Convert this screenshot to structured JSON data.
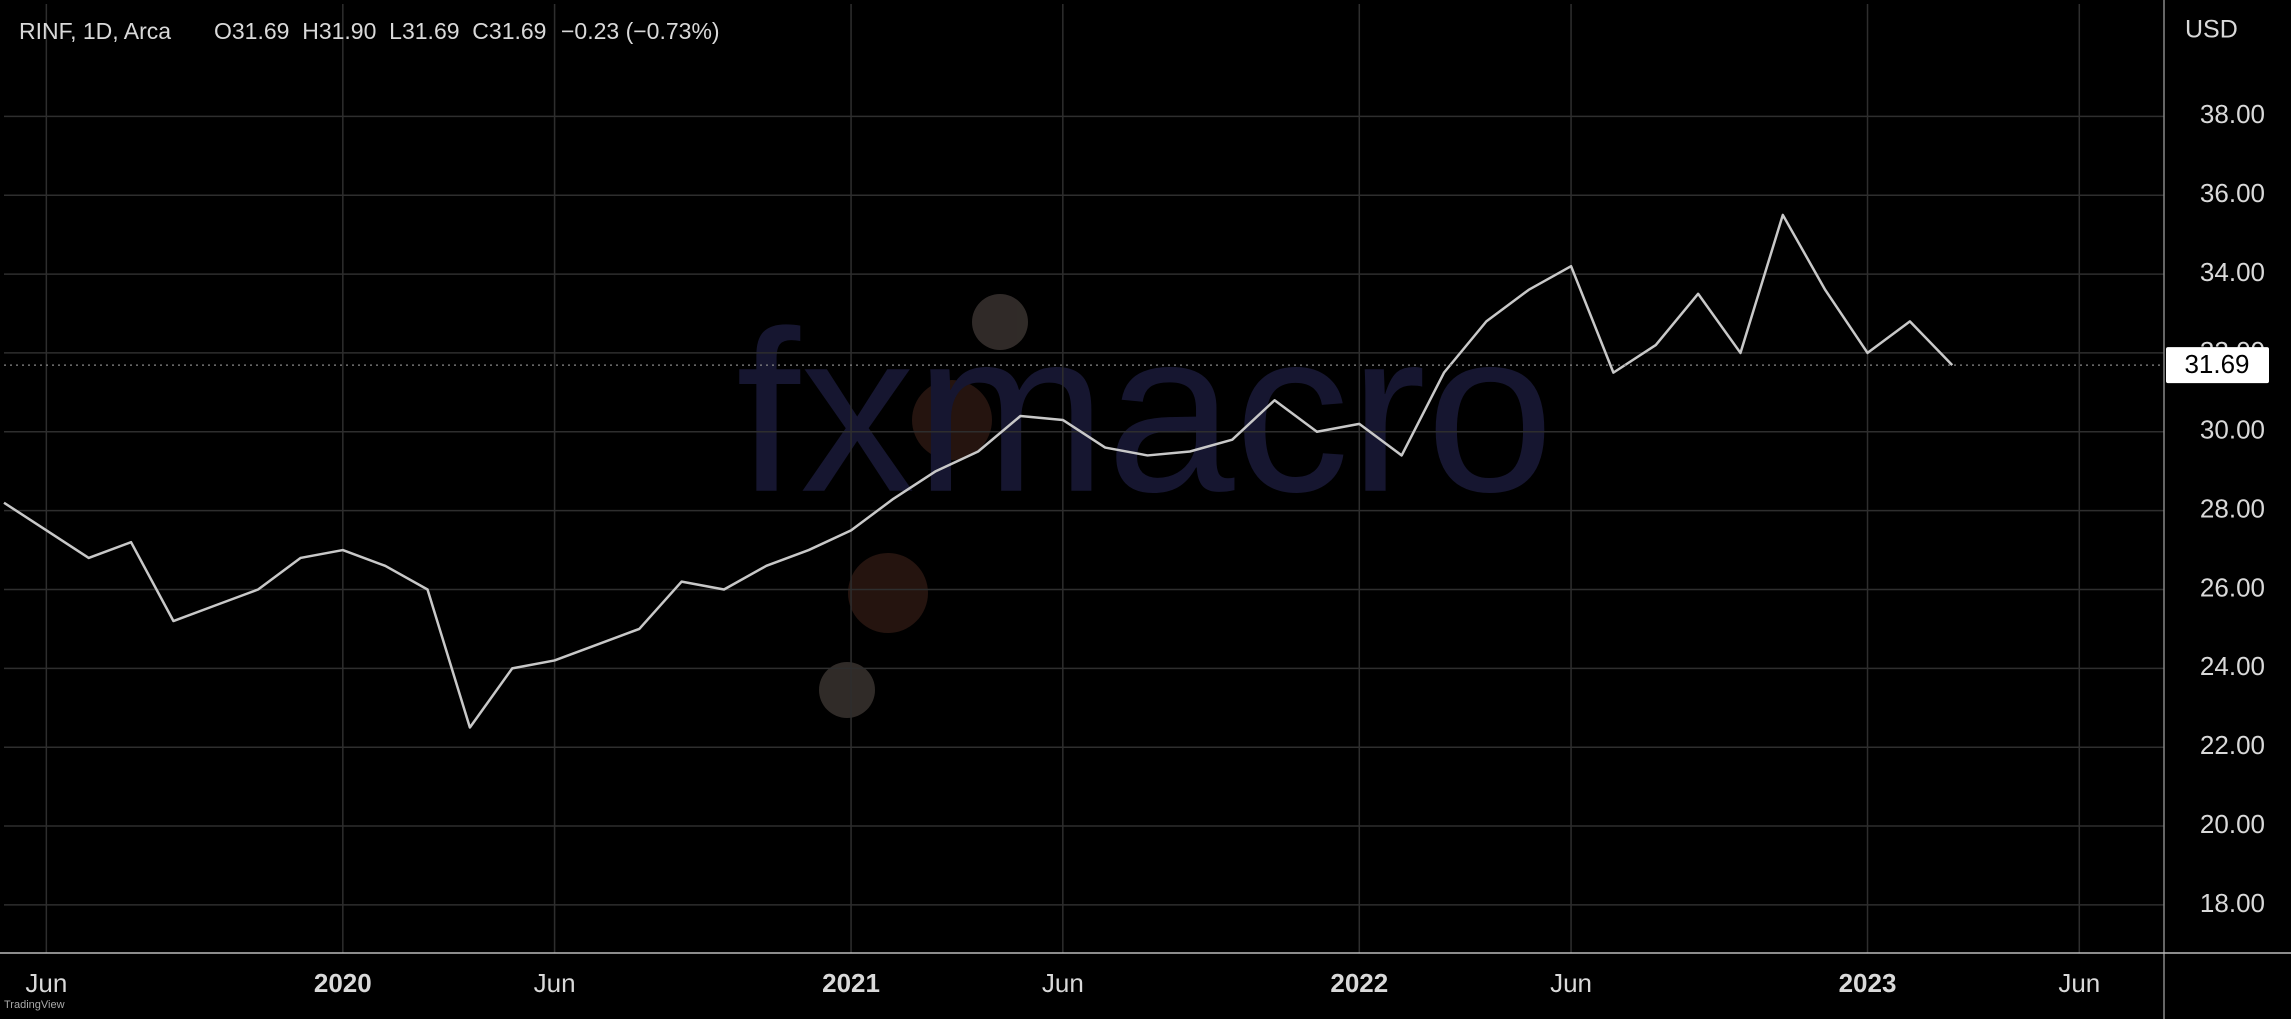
{
  "chart_data": {
    "type": "line",
    "header": "RINF, 1D, Arca",
    "ohlc_text": "O31.69  H31.90  L31.69  C31.69",
    "change_text": "−0.23 (−0.73%)",
    "currency": "USD",
    "watermark": "fxmacro",
    "brand": "TradingView",
    "x": [
      "2019-05",
      "2019-06",
      "2019-07",
      "2019-08",
      "2019-09",
      "2019-10",
      "2019-11",
      "2019-12",
      "2020-01",
      "2020-02",
      "2020-03",
      "2020-04",
      "2020-05",
      "2020-06",
      "2020-07",
      "2020-08",
      "2020-09",
      "2020-10",
      "2020-11",
      "2020-12",
      "2021-01",
      "2021-02",
      "2021-03",
      "2021-04",
      "2021-05",
      "2021-06",
      "2021-07",
      "2021-08",
      "2021-09",
      "2021-10",
      "2021-11",
      "2021-12",
      "2022-01",
      "2022-02",
      "2022-03",
      "2022-04",
      "2022-05",
      "2022-06",
      "2022-07",
      "2022-08",
      "2022-09",
      "2022-10",
      "2022-11",
      "2022-12",
      "2023-01",
      "2023-02",
      "2023-03"
    ],
    "series": [
      {
        "name": "RINF",
        "color": "#c8c8c8",
        "values": [
          28.2,
          27.5,
          26.8,
          27.2,
          25.2,
          25.6,
          26.0,
          26.8,
          27.0,
          26.6,
          26.0,
          22.5,
          24.0,
          24.2,
          24.6,
          25.0,
          26.2,
          26.0,
          26.6,
          27.0,
          27.5,
          28.3,
          29.0,
          29.5,
          30.4,
          30.3,
          29.6,
          29.4,
          29.5,
          29.8,
          30.8,
          30.0,
          30.2,
          29.4,
          31.5,
          32.8,
          33.6,
          34.2,
          31.5,
          32.2,
          33.5,
          32.0,
          35.5,
          33.6,
          32.0,
          32.8,
          31.69
        ]
      }
    ],
    "last_price": 31.69,
    "xlim": [
      "2019-05",
      "2023-08"
    ],
    "xticks": [
      {
        "value": "2019-06",
        "label": "Jun"
      },
      {
        "value": "2020-01",
        "label": "2020"
      },
      {
        "value": "2020-06",
        "label": "Jun"
      },
      {
        "value": "2021-01",
        "label": "2021"
      },
      {
        "value": "2021-06",
        "label": "Jun"
      },
      {
        "value": "2022-01",
        "label": "2022"
      },
      {
        "value": "2022-06",
        "label": "Jun"
      },
      {
        "value": "2023-01",
        "label": "2023"
      },
      {
        "value": "2023-06",
        "label": "Jun"
      }
    ],
    "ylim": [
      16.78,
      40.85
    ],
    "yticks": [
      {
        "value": 18,
        "label": "18.00"
      },
      {
        "value": 20,
        "label": "20.00"
      },
      {
        "value": 22,
        "label": "22.00"
      },
      {
        "value": 24,
        "label": "24.00"
      },
      {
        "value": 26,
        "label": "26.00"
      },
      {
        "value": 28,
        "label": "28.00"
      },
      {
        "value": 30,
        "label": "30.00"
      },
      {
        "value": 32,
        "label": "32.00"
      },
      {
        "value": 34,
        "label": "34.00"
      },
      {
        "value": 36,
        "label": "36.00"
      },
      {
        "value": 38,
        "label": "38.00"
      }
    ],
    "grid": true
  }
}
